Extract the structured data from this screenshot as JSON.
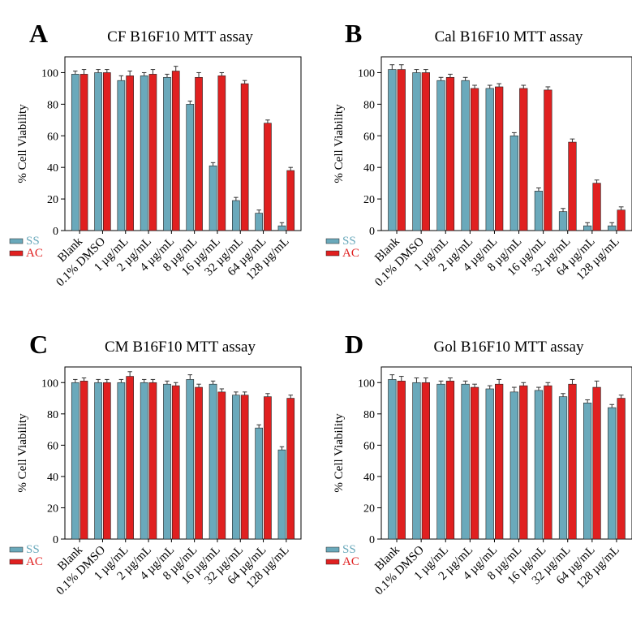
{
  "colors": {
    "SS": "#6aa9bb",
    "AC": "#e02020",
    "axis": "#000000",
    "errorbar": "#333333"
  },
  "chart_data": [
    {
      "type": "bar",
      "panel_label": "A",
      "title": "CF B16F10 MTT assay",
      "ylabel": "% Cell Viability",
      "ylim": [
        0,
        110
      ],
      "yticks": [
        0,
        20,
        40,
        60,
        80,
        100
      ],
      "grid": false,
      "legend": "bottom-left",
      "categories": [
        "Blank",
        "0.1% DMSO",
        "1 µg/mL",
        "2 µg/mL",
        "4 µg/mL",
        "8 µg/mL",
        "16 µg/mL",
        "32 µg/mL",
        "64 µg/mL",
        "128 µg/mL"
      ],
      "series": [
        {
          "name": "SS",
          "values": [
            99,
            100,
            95,
            98,
            97,
            80,
            41,
            19,
            11,
            3
          ],
          "errors": [
            2,
            2,
            3,
            2,
            2,
            2,
            2,
            2,
            2,
            2
          ]
        },
        {
          "name": "AC",
          "values": [
            99,
            100,
            98,
            99,
            101,
            97,
            98,
            93,
            68,
            38
          ],
          "errors": [
            3,
            2,
            3,
            3,
            3,
            3,
            2,
            2,
            2,
            2
          ]
        }
      ]
    },
    {
      "type": "bar",
      "panel_label": "B",
      "title": "Cal B16F10 MTT assay",
      "ylabel": "% Cell Viability",
      "ylim": [
        0,
        110
      ],
      "yticks": [
        0,
        20,
        40,
        60,
        80,
        100
      ],
      "grid": false,
      "legend": "bottom-left",
      "categories": [
        "Blank",
        "0.1% DMSO",
        "1 µg/mL",
        "2 µg/mL",
        "4 µg/mL",
        "8 µg/mL",
        "16 µg/mL",
        "32 µg/mL",
        "64 µg/mL",
        "128 µg/mL"
      ],
      "series": [
        {
          "name": "SS",
          "values": [
            102,
            100,
            95,
            95,
            90,
            60,
            25,
            12,
            3,
            3
          ],
          "errors": [
            3,
            2,
            2,
            2,
            2,
            2,
            2,
            2,
            2,
            2
          ]
        },
        {
          "name": "AC",
          "values": [
            102,
            100,
            97,
            90,
            91,
            90,
            89,
            56,
            30,
            13
          ],
          "errors": [
            3,
            2,
            2,
            2,
            2,
            2,
            2,
            2,
            2,
            2
          ]
        }
      ]
    },
    {
      "type": "bar",
      "panel_label": "C",
      "title": "CM B16F10 MTT assay",
      "ylabel": "% Cell Viability",
      "ylim": [
        0,
        110
      ],
      "yticks": [
        0,
        20,
        40,
        60,
        80,
        100
      ],
      "grid": false,
      "legend": "bottom-left",
      "categories": [
        "Blank",
        "0.1% DMSO",
        "1 µg/mL",
        "2 µg/mL",
        "4 µg/mL",
        "8 µg/mL",
        "16 µg/mL",
        "32 µg/mL",
        "64 µg/mL",
        "128 µg/mL"
      ],
      "series": [
        {
          "name": "SS",
          "values": [
            100,
            100,
            100,
            100,
            99,
            102,
            99,
            92,
            71,
            57
          ],
          "errors": [
            2,
            2,
            2,
            2,
            2,
            3,
            2,
            2,
            2,
            2
          ]
        },
        {
          "name": "AC",
          "values": [
            101,
            100,
            104,
            100,
            98,
            97,
            94,
            92,
            91,
            90
          ],
          "errors": [
            2,
            2,
            3,
            2,
            2,
            2,
            2,
            2,
            2,
            2
          ]
        }
      ]
    },
    {
      "type": "bar",
      "panel_label": "D",
      "title": "Gol B16F10 MTT assay",
      "ylabel": "% Cell Viability",
      "ylim": [
        0,
        110
      ],
      "yticks": [
        0,
        20,
        40,
        60,
        80,
        100
      ],
      "grid": false,
      "legend": "bottom-left",
      "categories": [
        "Blank",
        "0.1% DMSO",
        "1 µg/mL",
        "2 µg/mL",
        "4 µg/mL",
        "8 µg/mL",
        "16 µg/mL",
        "32 µg/mL",
        "64 µg/mL",
        "128 µg/mL"
      ],
      "series": [
        {
          "name": "SS",
          "values": [
            102,
            100,
            99,
            99,
            96,
            94,
            95,
            91,
            87,
            84
          ],
          "errors": [
            3,
            3,
            2,
            2,
            2,
            3,
            2,
            2,
            2,
            2
          ]
        },
        {
          "name": "AC",
          "values": [
            101,
            100,
            101,
            97,
            99,
            98,
            98,
            99,
            97,
            90
          ],
          "errors": [
            3,
            3,
            2,
            2,
            3,
            2,
            2,
            3,
            4,
            2
          ]
        }
      ]
    }
  ]
}
